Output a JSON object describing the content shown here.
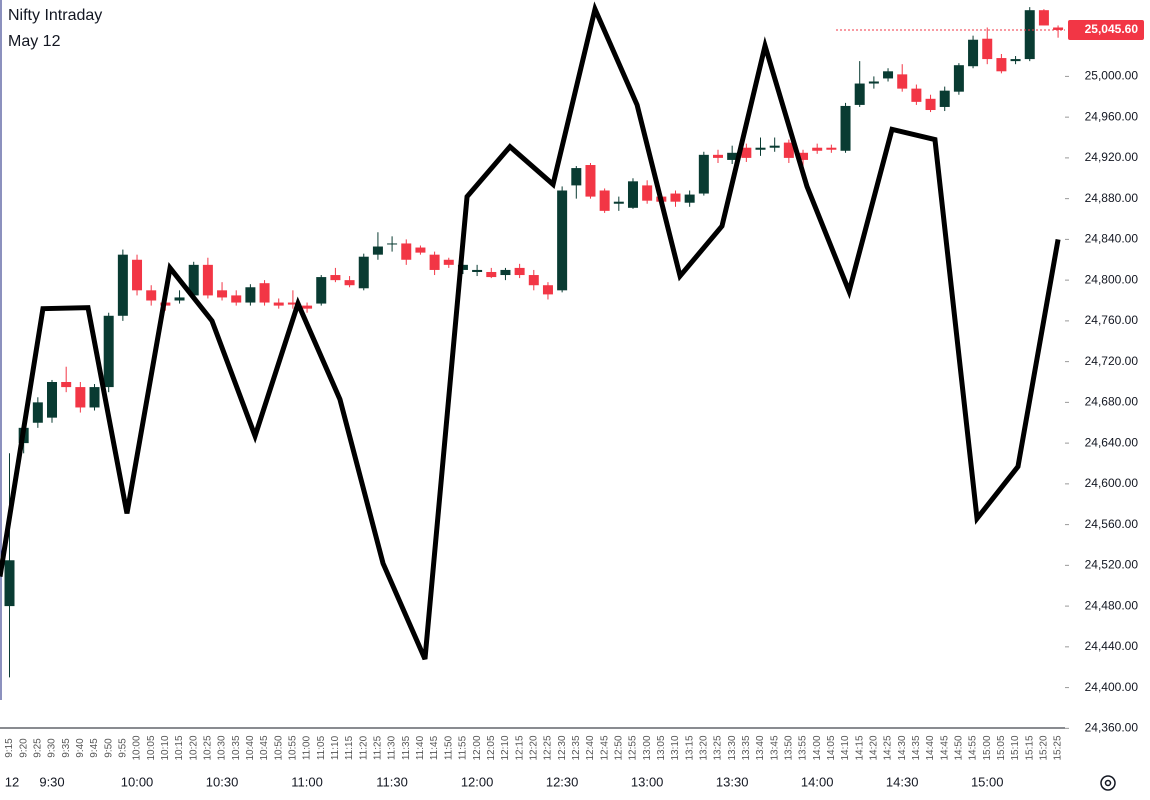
{
  "chart_data": {
    "type": "candlestick",
    "title": "Nifty Intraday",
    "subtitle": "May 12",
    "date_label": "12",
    "up_color": "#093b32",
    "down_color": "#f23645",
    "categories": [
      "9:15",
      "9:20",
      "9:25",
      "9:30",
      "9:35",
      "9:40",
      "9:45",
      "9:50",
      "9:55",
      "10:00",
      "10:05",
      "10:10",
      "10:15",
      "10:20",
      "10:25",
      "10:30",
      "10:35",
      "10:40",
      "10:45",
      "10:50",
      "10:55",
      "11:00",
      "11:05",
      "11:10",
      "11:15",
      "11:20",
      "11:25",
      "11:30",
      "11:35",
      "11:40",
      "11:45",
      "11:50",
      "11:55",
      "12:00",
      "12:05",
      "12:10",
      "12:15",
      "12:20",
      "12:25",
      "12:30",
      "12:35",
      "12:40",
      "12:45",
      "12:50",
      "12:55",
      "13:00",
      "13:05",
      "13:10",
      "13:15",
      "13:20",
      "13:25",
      "13:30",
      "13:35",
      "13:40",
      "13:45",
      "13:50",
      "13:55",
      "14:00",
      "14:05",
      "14:10",
      "14:15",
      "14:20",
      "14:25",
      "14:30",
      "14:35",
      "14:40",
      "14:45",
      "14:50",
      "14:55",
      "15:00",
      "15:05",
      "15:10",
      "15:15",
      "15:20",
      "15:25"
    ],
    "open": [
      24480,
      24640,
      24660,
      24665,
      24700,
      24695,
      24675,
      24695,
      24765,
      24820,
      24790,
      24778,
      24780,
      24785,
      24815,
      24790,
      24785,
      24778,
      24797,
      24778,
      24778,
      24775,
      24777,
      24805,
      24800,
      24792,
      24825,
      24835,
      24836,
      24832,
      24825,
      24820,
      24810,
      24808,
      24808,
      24805,
      24812,
      24805,
      24795,
      24790,
      24893,
      24913,
      24888,
      24875,
      24871,
      24893,
      24882,
      24885,
      24876,
      24885,
      24923,
      24918,
      24930,
      24928,
      24930,
      24935,
      24925,
      24930,
      24930,
      24927,
      24972,
      24993,
      24998,
      25002,
      24988,
      24978,
      24970,
      24985,
      25010,
      25037,
      25018,
      25015,
      25017,
      25065,
      25048
    ],
    "high": [
      24630,
      24660,
      24685,
      24702,
      24715,
      24700,
      24698,
      24768,
      24830,
      24825,
      24795,
      24782,
      24790,
      24818,
      24822,
      24798,
      24790,
      24796,
      24800,
      24782,
      24790,
      24778,
      24805,
      24812,
      24804,
      24826,
      24847,
      24843,
      24840,
      24834,
      24828,
      24822,
      24818,
      24815,
      24812,
      24812,
      24816,
      24810,
      24798,
      24892,
      24912,
      24915,
      24890,
      24882,
      24900,
      24898,
      24885,
      24888,
      24888,
      24926,
      24928,
      24932,
      24934,
      24940,
      24940,
      24938,
      24928,
      24934,
      24933,
      24974,
      25015,
      25000,
      25008,
      25012,
      24992,
      24982,
      24990,
      25013,
      25040,
      25048,
      25022,
      25020,
      25068,
      25066,
      25050
    ],
    "low": [
      24410,
      24630,
      24655,
      24660,
      24690,
      24670,
      24672,
      24690,
      24760,
      24785,
      24775,
      24770,
      24777,
      24782,
      24782,
      24780,
      24775,
      24775,
      24775,
      24772,
      24772,
      24768,
      24775,
      24798,
      24793,
      24790,
      24820,
      24828,
      24815,
      24825,
      24805,
      24812,
      24806,
      24804,
      24802,
      24800,
      24802,
      24790,
      24781,
      24788,
      24880,
      24880,
      24866,
      24868,
      24870,
      24875,
      24874,
      24872,
      24872,
      24883,
      24915,
      24914,
      24916,
      24922,
      24926,
      24915,
      24912,
      24924,
      24925,
      24925,
      24970,
      24988,
      24995,
      24985,
      24972,
      24965,
      24966,
      24982,
      25008,
      25012,
      25003,
      25012,
      25015,
      25050,
      25038
    ],
    "close": [
      24525,
      24655,
      24680,
      24700,
      24695,
      24675,
      24695,
      24765,
      24825,
      24790,
      24780,
      24775,
      24783,
      24815,
      24785,
      24783,
      24778,
      24793,
      24778,
      24775,
      24776,
      24772,
      24803,
      24800,
      24795,
      24823,
      24833,
      24836,
      24820,
      24827,
      24810,
      24815,
      24815,
      24810,
      24803,
      24810,
      24805,
      24795,
      24786,
      24888,
      24910,
      24882,
      24868,
      24877,
      24897,
      24878,
      24877,
      24877,
      24884,
      24923,
      24920,
      24925,
      24920,
      24930,
      24932,
      24920,
      24918,
      24927,
      24928,
      24971,
      24993,
      24995,
      25005,
      24988,
      24975,
      24967,
      24986,
      25011,
      25036,
      25017,
      25005,
      25017,
      25065,
      25050,
      25045.6
    ],
    "last_price": {
      "value": 25045.6,
      "label": "25,045.60"
    },
    "overlay": {
      "color": "#000000",
      "x": [
        -0.67,
        2.36,
        5.54,
        8.29,
        11.33,
        14.29,
        17.33,
        20.36,
        23.32,
        26.36,
        29.32,
        32.29,
        35.32,
        38.36,
        41.32,
        44.29,
        47.32,
        50.28,
        53.32,
        56.28,
        59.25,
        62.28,
        65.31,
        68.28,
        71.17,
        74.0
      ],
      "values": [
        24509,
        24772,
        24773,
        24571,
        24812,
        24760,
        24647,
        24777,
        24683,
        24522,
        24428,
        24882,
        24931,
        24894,
        25066,
        24972,
        24804,
        24853,
        25030,
        24892,
        24789,
        24948,
        24938,
        24566,
        24617,
        24840
      ]
    },
    "ylim": [
      24330,
      25075
    ],
    "yticks": [
      {
        "value": 24360,
        "label": "24,360.00"
      },
      {
        "value": 24400,
        "label": "24,400.00"
      },
      {
        "value": 24440,
        "label": "24,440.00"
      },
      {
        "value": 24480,
        "label": "24,480.00"
      },
      {
        "value": 24520,
        "label": "24,520.00"
      },
      {
        "value": 24560,
        "label": "24,560.00"
      },
      {
        "value": 24600,
        "label": "24,600.00"
      },
      {
        "value": 24640,
        "label": "24,640.00"
      },
      {
        "value": 24680,
        "label": "24,680.00"
      },
      {
        "value": 24720,
        "label": "24,720.00"
      },
      {
        "value": 24760,
        "label": "24,760.00"
      },
      {
        "value": 24800,
        "label": "24,800.00"
      },
      {
        "value": 24840,
        "label": "24,840.00"
      },
      {
        "value": 24880,
        "label": "24,880.00"
      },
      {
        "value": 24920,
        "label": "24,920.00"
      },
      {
        "value": 24960,
        "label": "24,960.00"
      },
      {
        "value": 25000,
        "label": "25,000.00"
      }
    ],
    "grid": false
  }
}
